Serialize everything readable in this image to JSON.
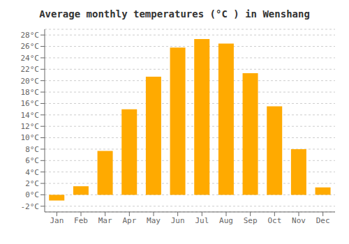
{
  "chart_data": {
    "type": "bar",
    "title": "Average monthly temperatures (°C ) in Wenshang",
    "categories": [
      "Jan",
      "Feb",
      "Mar",
      "Apr",
      "May",
      "Jun",
      "Jul",
      "Aug",
      "Sep",
      "Oct",
      "Nov",
      "Dec"
    ],
    "values": [
      -1.0,
      1.5,
      7.7,
      15.0,
      20.7,
      25.8,
      27.3,
      26.5,
      21.3,
      15.5,
      8.0,
      1.3
    ],
    "color": "#FFAA00",
    "ylim": [
      -3,
      29
    ],
    "yticks": [
      {
        "value": -2,
        "label": "-2°C"
      },
      {
        "value": 0,
        "label": "0°C"
      },
      {
        "value": 2,
        "label": "2°C"
      },
      {
        "value": 4,
        "label": "4°C"
      },
      {
        "value": 6,
        "label": "6°C"
      },
      {
        "value": 8,
        "label": "8°C"
      },
      {
        "value": 10,
        "label": "10°C"
      },
      {
        "value": 12,
        "label": "12°C"
      },
      {
        "value": 14,
        "label": "14°C"
      },
      {
        "value": 16,
        "label": "16°C"
      },
      {
        "value": 18,
        "label": "18°C"
      },
      {
        "value": 20,
        "label": "20°C"
      },
      {
        "value": 22,
        "label": "22°C"
      },
      {
        "value": 24,
        "label": "24°C"
      },
      {
        "value": 26,
        "label": "26°C"
      },
      {
        "value": 28,
        "label": "28°C"
      }
    ],
    "grid": true
  }
}
